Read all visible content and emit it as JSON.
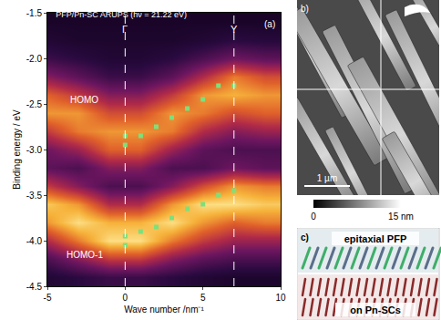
{
  "chart_data": {
    "type": "scatter",
    "title": "PFP/Pn-SC ARUPS (hν = 21.22 eV)",
    "panel_label": "(a)",
    "x_label": "Wave number /nm⁻¹",
    "y_label": "Binding energy / eV",
    "xlim": [
      -5,
      10
    ],
    "xticks": [
      -5,
      0,
      5,
      10
    ],
    "ylim": [
      -4.5,
      -1.5
    ],
    "yticks": [
      -4.5,
      {
        "value": -4,
        "label": "-4.0"
      },
      -3.5,
      {
        "value": -3,
        "label": "-3.0"
      },
      -2.5,
      {
        "value": -2,
        "label": "-2.0"
      },
      -1.5
    ],
    "grid": false,
    "heatmap": {
      "x": [
        -5,
        -3,
        -1,
        1,
        3,
        5,
        7,
        9
      ],
      "y": [
        -1.6,
        -1.8,
        -2.0,
        -2.2,
        -2.4,
        -2.6,
        -2.8,
        -3.0,
        -3.2,
        -3.4,
        -3.6,
        -3.8,
        -4.0,
        -4.2,
        -4.4
      ],
      "z": [
        [
          0.1,
          0.1,
          0.1,
          0.1,
          0.1,
          0.1,
          0.1,
          0.1
        ],
        [
          0.15,
          0.12,
          0.12,
          0.12,
          0.12,
          0.15,
          0.2,
          0.18
        ],
        [
          0.25,
          0.2,
          0.15,
          0.15,
          0.2,
          0.3,
          0.4,
          0.35
        ],
        [
          0.45,
          0.35,
          0.25,
          0.25,
          0.35,
          0.55,
          0.75,
          0.65
        ],
        [
          0.7,
          0.6,
          0.45,
          0.45,
          0.6,
          0.8,
          0.85,
          0.8
        ],
        [
          0.8,
          0.8,
          0.65,
          0.65,
          0.8,
          0.75,
          0.65,
          0.7
        ],
        [
          0.6,
          0.75,
          0.8,
          0.8,
          0.75,
          0.55,
          0.45,
          0.5
        ],
        [
          0.4,
          0.5,
          0.7,
          0.7,
          0.5,
          0.35,
          0.3,
          0.3
        ],
        [
          0.35,
          0.3,
          0.45,
          0.45,
          0.3,
          0.3,
          0.4,
          0.35
        ],
        [
          0.6,
          0.45,
          0.3,
          0.3,
          0.45,
          0.65,
          0.8,
          0.75
        ],
        [
          0.9,
          0.8,
          0.55,
          0.55,
          0.8,
          0.95,
          0.95,
          0.9
        ],
        [
          0.8,
          0.95,
          0.85,
          0.85,
          0.95,
          0.8,
          0.7,
          0.75
        ],
        [
          0.55,
          0.75,
          0.95,
          0.95,
          0.75,
          0.6,
          0.5,
          0.5
        ],
        [
          0.3,
          0.45,
          0.6,
          0.6,
          0.45,
          0.35,
          0.3,
          0.3
        ],
        [
          0.15,
          0.2,
          0.25,
          0.25,
          0.2,
          0.15,
          0.12,
          0.12
        ]
      ],
      "zlim": [
        0,
        1
      ]
    },
    "series": [
      {
        "x": [
          0,
          0,
          1,
          2,
          3,
          4,
          5,
          6,
          7
        ],
        "values": [
          -2.85,
          -2.95,
          -2.85,
          -2.75,
          -2.65,
          -2.55,
          -2.45,
          -2.3,
          -2.3
        ],
        "color": "#7de07a",
        "marker": "square"
      },
      {
        "x": [
          0,
          0,
          1,
          2,
          3,
          4,
          5,
          6,
          7
        ],
        "values": [
          -3.95,
          -4.05,
          -3.9,
          -3.85,
          -3.75,
          -3.65,
          -3.6,
          -3.5,
          -3.45
        ],
        "color": "#7de07a",
        "marker": "square"
      }
    ],
    "annotations": [
      {
        "text": "HOMO",
        "x": -2.6,
        "y": -2.45
      },
      {
        "text": "HOMO-1",
        "x": -2.6,
        "y": -4.15
      }
    ],
    "reference_lines": [
      {
        "x": 0,
        "label": "Γ"
      },
      {
        "x": 7,
        "label": "Y"
      }
    ]
  },
  "panel_b": {
    "label": "b)",
    "scale_bar": "1 µm",
    "colorbar": {
      "range": [
        0,
        15
      ],
      "ticks": [
        0,
        {
          "value": 15,
          "label": "15 nm"
        }
      ]
    }
  },
  "panel_c": {
    "label": "c)",
    "layers": [
      "epitaxial PFP",
      "on Pn-SCs"
    ]
  }
}
